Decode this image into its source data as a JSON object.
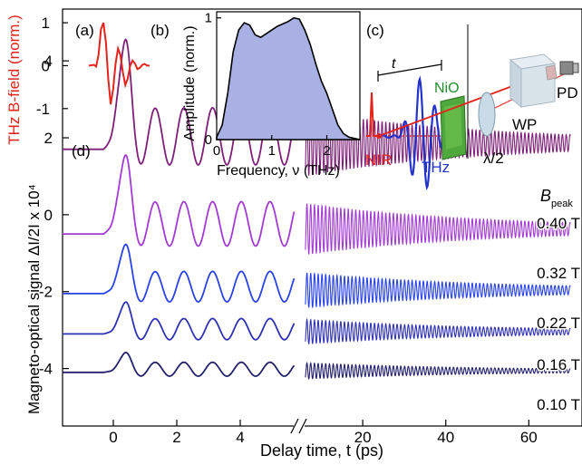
{
  "chart_data": [
    {
      "panel": "(a)",
      "type": "line",
      "ylabel": "THz B-field (norm.)",
      "yticks": [
        "1",
        "0",
        "-1"
      ],
      "ylim": [
        -1.3,
        1.15
      ],
      "color": "#e3241c",
      "series": [
        {
          "x": [
            0.0,
            0.04,
            0.08,
            0.12,
            0.16,
            0.2,
            0.24,
            0.28,
            0.32,
            0.36,
            0.4,
            0.44,
            0.48,
            0.52,
            0.56,
            0.6,
            0.64,
            0.68,
            0.72,
            0.76,
            0.8,
            0.84,
            0.88,
            0.92,
            0.96,
            1.0
          ],
          "y": [
            0.0,
            0.01,
            0.02,
            -0.02,
            0.25,
            0.85,
            1.0,
            0.55,
            -0.3,
            -0.9,
            -0.55,
            0.05,
            0.4,
            0.25,
            -0.15,
            -0.45,
            -0.3,
            0.0,
            0.12,
            0.05,
            -0.08,
            -0.05,
            0.02,
            0.04,
            0.0,
            0.0
          ]
        }
      ]
    },
    {
      "panel": "(b)",
      "type": "area",
      "xlabel": "Frequency, ν (THz)",
      "ylabel": "Amplitude (norm.)",
      "xlim": [
        0,
        2.6
      ],
      "ylim": [
        0,
        1.05
      ],
      "xticks": [
        "0",
        "1",
        "2"
      ],
      "yticks": [
        "0",
        "1"
      ],
      "color": "#a9b1e4",
      "series": [
        {
          "x": [
            0.0,
            0.1,
            0.2,
            0.3,
            0.4,
            0.5,
            0.6,
            0.7,
            0.8,
            0.9,
            1.0,
            1.1,
            1.2,
            1.3,
            1.4,
            1.5,
            1.6,
            1.7,
            1.8,
            1.9,
            2.0,
            2.1,
            2.2,
            2.3,
            2.4,
            2.5,
            2.6
          ],
          "y": [
            0.02,
            0.12,
            0.38,
            0.72,
            0.9,
            0.96,
            0.94,
            0.86,
            0.84,
            0.87,
            0.9,
            0.93,
            0.95,
            0.97,
            1.0,
            0.99,
            0.9,
            0.78,
            0.62,
            0.48,
            0.38,
            0.25,
            0.12,
            0.05,
            0.02,
            0.01,
            0.0
          ]
        }
      ]
    },
    {
      "panel": "(d)",
      "type": "line",
      "xlabel": "Delay time, t (ps)",
      "ylabel": "Magneto-optical signal ΔI/2I x 10⁴",
      "xticks_left": [
        "0",
        "2",
        "4"
      ],
      "xticks_right": [
        "20",
        "40",
        "60"
      ],
      "yticks": [
        "4",
        "2",
        "0",
        "-2",
        "-4"
      ],
      "ylim": [
        -5.4,
        5.3
      ],
      "axis_break": [
        6,
        6
      ],
      "legend_title": "B",
      "legend_title_sub": "peak",
      "series": [
        {
          "name": "0.40 T",
          "offset": 1.7,
          "amplitude": 1.35,
          "color": "#7e1f78"
        },
        {
          "name": "0.32 T",
          "offset": -0.5,
          "amplitude": 1.05,
          "color": "#a23bd3"
        },
        {
          "name": "0.22 T",
          "offset": -2.05,
          "amplitude": 0.72,
          "color": "#2a43e8"
        },
        {
          "name": "0.16 T",
          "offset": -3.1,
          "amplitude": 0.5,
          "color": "#2f32b2"
        },
        {
          "name": "0.10 T",
          "offset": -4.1,
          "amplitude": 0.33,
          "color": "#24216c"
        }
      ]
    }
  ],
  "panel_labels": [
    "(a)",
    "(b)",
    "(c)",
    "(d)"
  ],
  "schematic": {
    "label_t": "t",
    "label_nio": "NiO",
    "label_nir": "NIR",
    "label_thz": "THz",
    "label_waveplate": "λ/2",
    "label_wp": "WP",
    "label_pd": "PD"
  },
  "colors": {
    "thz": "#e3241c",
    "nio": "#1f8f2a",
    "probe": "#2233cc",
    "axis": "#000000"
  }
}
